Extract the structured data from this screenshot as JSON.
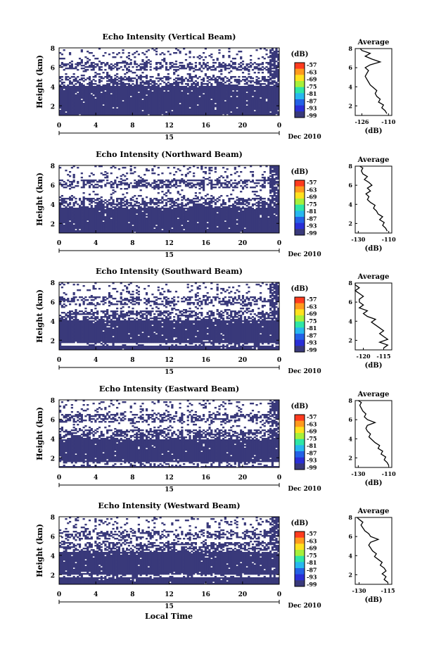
{
  "date_label": "Dec 2010",
  "xlabel": "Local Time",
  "colorbar": {
    "unit": "(dB)",
    "ticks": [
      "-57",
      "-63",
      "-69",
      "-75",
      "-81",
      "-87",
      "-93",
      "-99"
    ],
    "colors": [
      "#ff3b1e",
      "#ff9a1e",
      "#ffe11e",
      "#a6f03a",
      "#2ee6a6",
      "#27b7ef",
      "#2361e6",
      "#2a2fd6",
      "#39397a"
    ]
  },
  "chart_data": [
    {
      "type": "heatmap",
      "title": "Echo Intensity (Vertical Beam)",
      "ylabel": "Height (km)",
      "x_ticks": [
        "0",
        "4",
        "8",
        "12",
        "16",
        "20",
        "0"
      ],
      "y_ticks": [
        "2",
        "4",
        "6",
        "8"
      ],
      "day_label": "15",
      "xlim": [
        0,
        24
      ],
      "ylim": [
        1,
        8
      ],
      "profile": {
        "title": "Average",
        "xlabel": "(dB)",
        "x_ticks": [
          "-126",
          "-110"
        ],
        "xlim": [
          -130,
          -108
        ],
        "y_ticks": [
          "2",
          "4",
          "6",
          "8"
        ],
        "ylim": [
          1,
          8
        ],
        "x": [
          -111,
          -112,
          -114,
          -113,
          -116,
          -115,
          -117,
          -118,
          -117,
          -119,
          -121,
          -122,
          -123,
          -124,
          -123,
          -122,
          -124,
          -121,
          -115,
          -120,
          -124,
          -121,
          -126,
          -127
        ],
        "y": [
          1.2,
          1.5,
          1.8,
          2.1,
          2.4,
          2.7,
          3.0,
          3.3,
          3.6,
          3.9,
          4.2,
          4.5,
          4.8,
          5.1,
          5.4,
          5.7,
          6.0,
          6.3,
          6.6,
          6.9,
          7.2,
          7.5,
          7.8,
          8.0
        ]
      }
    },
    {
      "type": "heatmap",
      "title": "Echo Intensity (Northward Beam)",
      "ylabel": "Height (km)",
      "x_ticks": [
        "0",
        "4",
        "8",
        "12",
        "16",
        "20",
        "0"
      ],
      "y_ticks": [
        "2",
        "4",
        "6",
        "8"
      ],
      "day_label": "15",
      "xlim": [
        0,
        24
      ],
      "ylim": [
        1,
        8
      ],
      "profile": {
        "title": "Average",
        "xlabel": "(dB)",
        "x_ticks": [
          "-130",
          "-110"
        ],
        "xlim": [
          -132,
          -108
        ],
        "y_ticks": [
          "2",
          "4",
          "6",
          "8"
        ],
        "ylim": [
          1,
          8
        ],
        "x": [
          -111,
          -112,
          -114,
          -113,
          -116,
          -114,
          -117,
          -118,
          -120,
          -119,
          -122,
          -124,
          -123,
          -125,
          -122,
          -124,
          -121,
          -123,
          -126,
          -124,
          -127,
          -128,
          -127,
          -129
        ],
        "y": [
          1.2,
          1.5,
          1.8,
          2.1,
          2.4,
          2.7,
          3.0,
          3.3,
          3.6,
          3.9,
          4.2,
          4.5,
          4.8,
          5.1,
          5.4,
          5.7,
          6.0,
          6.3,
          6.6,
          6.9,
          7.2,
          7.5,
          7.8,
          8.0
        ]
      }
    },
    {
      "type": "heatmap",
      "title": "Echo Intensity (Southward Beam)",
      "ylabel": "Height (km)",
      "x_ticks": [
        "0",
        "4",
        "8",
        "12",
        "16",
        "20",
        "0"
      ],
      "y_ticks": [
        "2",
        "4",
        "6",
        "8"
      ],
      "day_label": "15",
      "xlim": [
        0,
        24
      ],
      "ylim": [
        1,
        8
      ],
      "profile": {
        "title": "Average",
        "xlabel": "(dB)",
        "x_ticks": [
          "-120",
          "-115"
        ],
        "xlim": [
          -122,
          -113
        ],
        "y_ticks": [
          "2",
          "4",
          "6",
          "8"
        ],
        "ylim": [
          1,
          8
        ],
        "x": [
          -115,
          -114,
          -116,
          -114,
          -115,
          -116,
          -115,
          -116,
          -117,
          -118,
          -117,
          -119,
          -120,
          -119,
          -121,
          -120,
          -121,
          -121,
          -120,
          -121,
          -122,
          -121,
          -122,
          -122
        ],
        "y": [
          1.2,
          1.5,
          1.8,
          2.1,
          2.4,
          2.7,
          3.0,
          3.3,
          3.6,
          3.9,
          4.2,
          4.5,
          4.8,
          5.1,
          5.4,
          5.7,
          6.0,
          6.3,
          6.6,
          6.9,
          7.2,
          7.5,
          7.8,
          8.0
        ]
      }
    },
    {
      "type": "heatmap",
      "title": "Echo Intensity (Eastward Beam)",
      "ylabel": "Height (km)",
      "x_ticks": [
        "0",
        "4",
        "8",
        "12",
        "16",
        "20",
        "0"
      ],
      "y_ticks": [
        "2",
        "4",
        "6",
        "8"
      ],
      "day_label": "15",
      "xlim": [
        0,
        24
      ],
      "ylim": [
        1,
        8
      ],
      "profile": {
        "title": "Average",
        "xlabel": "(dB)",
        "x_ticks": [
          "-130",
          "-110"
        ],
        "xlim": [
          -132,
          -108
        ],
        "y_ticks": [
          "2",
          "4",
          "6",
          "8"
        ],
        "ylim": [
          1,
          8
        ],
        "x": [
          -110,
          -111,
          -113,
          -112,
          -115,
          -114,
          -117,
          -116,
          -119,
          -121,
          -123,
          -122,
          -124,
          -125,
          -124,
          -119,
          -124,
          -126,
          -125,
          -127,
          -128,
          -129,
          -128,
          -130
        ],
        "y": [
          1.2,
          1.5,
          1.8,
          2.1,
          2.4,
          2.7,
          3.0,
          3.3,
          3.6,
          3.9,
          4.2,
          4.5,
          4.8,
          5.1,
          5.4,
          5.7,
          6.0,
          6.3,
          6.6,
          6.9,
          7.2,
          7.5,
          7.8,
          8.0
        ]
      }
    },
    {
      "type": "heatmap",
      "title": "Echo Intensity (Westward Beam)",
      "ylabel": "Height (km)",
      "x_ticks": [
        "0",
        "4",
        "8",
        "12",
        "16",
        "20",
        "0"
      ],
      "y_ticks": [
        "2",
        "4",
        "6",
        "8"
      ],
      "day_label": "15",
      "xlim": [
        0,
        24
      ],
      "ylim": [
        1,
        8
      ],
      "profile": {
        "title": "Average",
        "xlabel": "(dB)",
        "x_ticks": [
          "-130",
          "-115"
        ],
        "xlim": [
          -132,
          -113
        ],
        "y_ticks": [
          "2",
          "4",
          "6",
          "8"
        ],
        "ylim": [
          1,
          8
        ],
        "x": [
          -115,
          -117,
          -116,
          -118,
          -116,
          -117,
          -119,
          -118,
          -120,
          -122,
          -121,
          -123,
          -124,
          -125,
          -124,
          -120,
          -124,
          -125,
          -127,
          -128,
          -129,
          -128,
          -130,
          -131
        ],
        "y": [
          1.2,
          1.5,
          1.8,
          2.1,
          2.4,
          2.7,
          3.0,
          3.3,
          3.6,
          3.9,
          4.2,
          4.5,
          4.8,
          5.1,
          5.4,
          5.7,
          6.0,
          6.3,
          6.6,
          6.9,
          7.2,
          7.5,
          7.8,
          8.0
        ]
      }
    }
  ]
}
